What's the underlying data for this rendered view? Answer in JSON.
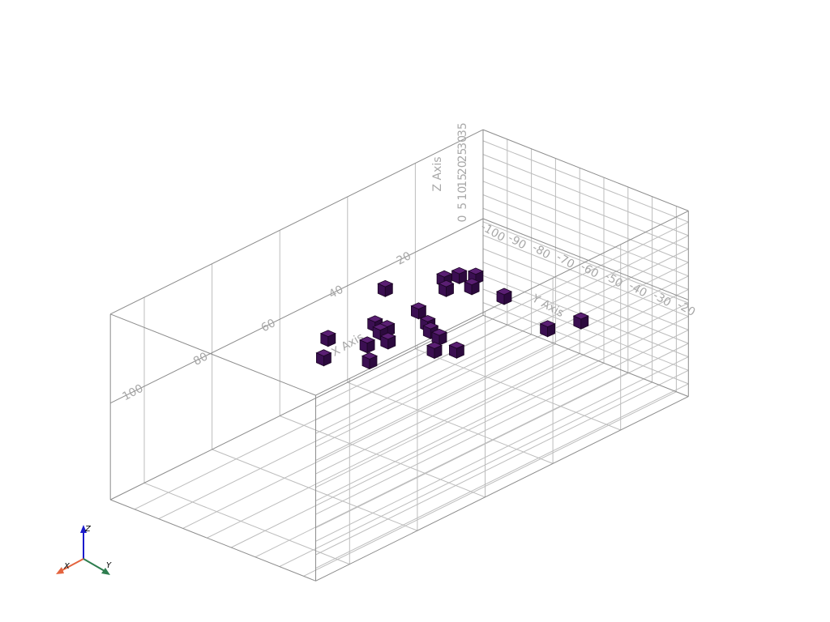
{
  "chart_data": {
    "type": "scatter",
    "marker": "cube",
    "marker_color": "#3b0f52",
    "grid": true,
    "xlabel": "X Axis",
    "ylabel": "Y Axis",
    "zlabel": "Z Axis",
    "xlim": [
      0,
      110
    ],
    "ylim": [
      -100,
      -15
    ],
    "zlim": [
      0,
      35
    ],
    "x_ticks": [
      "20",
      "40",
      "60",
      "80",
      "100"
    ],
    "y_ticks": [
      "-100",
      "-90",
      "-80",
      "-70",
      "-60",
      "-50",
      "-40",
      "-30",
      "-20"
    ],
    "z_ticks": [
      "0",
      "5",
      "10",
      "15",
      "20",
      "25",
      "30",
      "35"
    ],
    "points": [
      {
        "x": 36,
        "y": -90,
        "z": 0
      },
      {
        "x": 25,
        "y": -81,
        "z": 0
      },
      {
        "x": 22,
        "y": -79,
        "z": 0
      },
      {
        "x": 20,
        "y": -75,
        "z": 0
      },
      {
        "x": 28,
        "y": -76,
        "z": 0
      },
      {
        "x": 24,
        "y": -71,
        "z": 0
      },
      {
        "x": 39,
        "y": -72,
        "z": 0
      },
      {
        "x": 23,
        "y": -59,
        "z": 0
      },
      {
        "x": 42,
        "y": -64,
        "z": 0
      },
      {
        "x": 49,
        "y": -76,
        "z": 0
      },
      {
        "x": 44,
        "y": -60,
        "z": 0
      },
      {
        "x": 49,
        "y": -71,
        "z": 0
      },
      {
        "x": 51,
        "y": -71,
        "z": 0
      },
      {
        "x": 53,
        "y": -65,
        "z": 0
      },
      {
        "x": 45,
        "y": -55,
        "z": 0
      },
      {
        "x": 57,
        "y": -68,
        "z": 0
      },
      {
        "x": 60,
        "y": -80,
        "z": 0
      },
      {
        "x": 67,
        "y": -72,
        "z": 0
      },
      {
        "x": 62,
        "y": -60,
        "z": 0
      },
      {
        "x": 50,
        "y": -50,
        "z": 0
      },
      {
        "x": 47,
        "y": -45,
        "z": 0
      },
      {
        "x": 28,
        "y": -34,
        "z": 0
      },
      {
        "x": 21,
        "y": -30,
        "z": 0
      }
    ]
  },
  "orientation_widget": {
    "x_label": "X",
    "y_label": "Y",
    "z_label": "Z",
    "x_color": "#e4643e",
    "y_color": "#2e7d4f",
    "z_color": "#1a1acc"
  }
}
